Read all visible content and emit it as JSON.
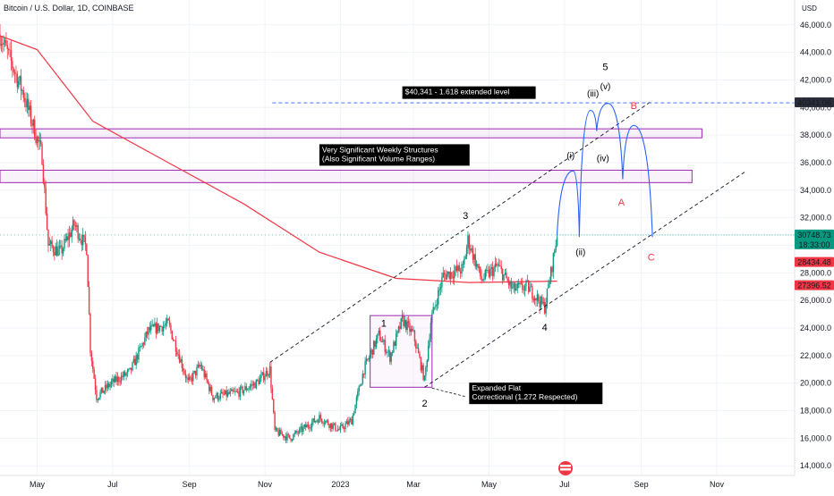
{
  "chart_data": {
    "type": "candlestick",
    "title": "Bitcoin / U.S. Dollar, 1D, COINBASE",
    "currency": "USD",
    "y_ticks": [
      14000,
      16000,
      18000,
      20000,
      22000,
      24000,
      26000,
      28000,
      30000,
      32000,
      34000,
      36000,
      38000,
      40000,
      42000,
      44000,
      46000
    ],
    "ylim": [
      13300,
      47800
    ],
    "x_labels": [
      "May",
      "Jul",
      "Sep",
      "Nov",
      "2023",
      "Mar",
      "May",
      "Jul",
      "Sep",
      "Nov"
    ],
    "grid": true,
    "price_path": [
      {
        "date": "2022-04-01",
        "price": 45300
      },
      {
        "date": "2022-04-20",
        "price": 41000
      },
      {
        "date": "2022-05-05",
        "price": 36500
      },
      {
        "date": "2022-05-10",
        "price": 30000
      },
      {
        "date": "2022-05-20",
        "price": 29500
      },
      {
        "date": "2022-05-31",
        "price": 31500
      },
      {
        "date": "2022-06-10",
        "price": 29800
      },
      {
        "date": "2022-06-13",
        "price": 22500
      },
      {
        "date": "2022-06-18",
        "price": 19000
      },
      {
        "date": "2022-06-30",
        "price": 20000
      },
      {
        "date": "2022-07-15",
        "price": 20800
      },
      {
        "date": "2022-07-30",
        "price": 23800
      },
      {
        "date": "2022-08-15",
        "price": 24300
      },
      {
        "date": "2022-08-31",
        "price": 20000
      },
      {
        "date": "2022-09-10",
        "price": 21300
      },
      {
        "date": "2022-09-20",
        "price": 19000
      },
      {
        "date": "2022-10-10",
        "price": 19300
      },
      {
        "date": "2022-10-25",
        "price": 20000
      },
      {
        "date": "2022-11-05",
        "price": 21000
      },
      {
        "date": "2022-11-09",
        "price": 16500
      },
      {
        "date": "2022-11-21",
        "price": 16000
      },
      {
        "date": "2022-12-15",
        "price": 17500
      },
      {
        "date": "2022-12-31",
        "price": 16600
      },
      {
        "date": "2023-01-10",
        "price": 17300
      },
      {
        "date": "2023-01-20",
        "price": 21000
      },
      {
        "date": "2023-02-01",
        "price": 23500
      },
      {
        "date": "2023-02-10",
        "price": 21900
      },
      {
        "date": "2023-02-20",
        "price": 24600
      },
      {
        "date": "2023-03-01",
        "price": 23500
      },
      {
        "date": "2023-03-10",
        "price": 20200
      },
      {
        "date": "2023-03-15",
        "price": 24500
      },
      {
        "date": "2023-03-25",
        "price": 27800
      },
      {
        "date": "2023-04-10",
        "price": 28300
      },
      {
        "date": "2023-04-14",
        "price": 30400
      },
      {
        "date": "2023-04-25",
        "price": 27500
      },
      {
        "date": "2023-05-08",
        "price": 28500
      },
      {
        "date": "2023-05-20",
        "price": 26800
      },
      {
        "date": "2023-06-01",
        "price": 27000
      },
      {
        "date": "2023-06-15",
        "price": 25500
      },
      {
        "date": "2023-06-20",
        "price": 28000
      },
      {
        "date": "2023-06-25",
        "price": 30748.73
      }
    ],
    "series": [
      {
        "type": "line",
        "color": "#f23645",
        "points": [
          {
            "date": "2022-04-01",
            "price": 45200
          },
          {
            "date": "2022-05-01",
            "price": 44200
          },
          {
            "date": "2022-06-15",
            "price": 39000
          },
          {
            "date": "2022-08-15",
            "price": 36000
          },
          {
            "date": "2022-10-15",
            "price": 33000
          },
          {
            "date": "2022-12-15",
            "price": 29500
          },
          {
            "date": "2023-02-15",
            "price": 27600
          },
          {
            "date": "2023-04-15",
            "price": 27300
          },
          {
            "date": "2023-06-25",
            "price": 27396.52
          }
        ]
      }
    ],
    "price_labels": [
      {
        "value": 40341.06,
        "text": "40341.06",
        "color": "#2a2e39"
      },
      {
        "value": 30748.73,
        "text": "30748.73",
        "sub": "18:33:00",
        "color": "#089981"
      },
      {
        "value": 28434.48,
        "text": "28434.48",
        "color": "#f23645"
      },
      {
        "value": 27396.52,
        "text": "27396.52",
        "color": "#f23645"
      }
    ],
    "zones": [
      {
        "low": 37800,
        "high": 38450
      },
      {
        "low": 34550,
        "high": 35450
      }
    ],
    "correction_box": {
      "x0": "2023-01-25",
      "x1": "2023-03-16",
      "low": 19700,
      "high": 24900
    },
    "channel_lines": [
      {
        "from": {
          "date": "2022-11-05",
          "price": 21500
        },
        "to": {
          "date": "2023-09-10",
          "price": 40500
        }
      },
      {
        "from": {
          "date": "2023-03-10",
          "price": 19700
        },
        "to": {
          "date": "2023-11-25",
          "price": 35400
        }
      }
    ],
    "extension_level": {
      "value": 40341.06
    },
    "wave_path": [
      {
        "date": "2023-06-25",
        "price": 30748.73
      },
      {
        "date": "2023-07-08",
        "price": 35400
      },
      {
        "date": "2023-07-13",
        "price": 30600
      },
      {
        "date": "2023-07-22",
        "price": 39800
      },
      {
        "date": "2023-07-27",
        "price": 38300
      },
      {
        "date": "2023-08-05",
        "price": 40300
      },
      {
        "date": "2023-08-17",
        "price": 34800
      },
      {
        "date": "2023-08-26",
        "price": 38700
      },
      {
        "date": "2023-09-10",
        "price": 30600
      }
    ],
    "annotations": {
      "wave_labels": [
        {
          "text": "1",
          "date": "2023-02-05",
          "price": 24100,
          "color": "#000000"
        },
        {
          "text": "2",
          "date": "2023-03-10",
          "price": 18300,
          "color": "#000000"
        },
        {
          "text": "3",
          "date": "2023-04-12",
          "price": 31900,
          "color": "#000000"
        },
        {
          "text": "4",
          "date": "2023-06-15",
          "price": 23800,
          "color": "#000000"
        },
        {
          "text": "5",
          "date": "2023-08-03",
          "price": 42700,
          "color": "#000000"
        },
        {
          "text": "(i)",
          "date": "2023-07-06",
          "price": 36300,
          "color": "#000000"
        },
        {
          "text": "(ii)",
          "date": "2023-07-14",
          "price": 29300,
          "color": "#000000"
        },
        {
          "text": "(iii)",
          "date": "2023-07-24",
          "price": 40800,
          "color": "#000000"
        },
        {
          "text": "(iv)",
          "date": "2023-08-01",
          "price": 36100,
          "color": "#000000"
        },
        {
          "text": "(v)",
          "date": "2023-08-03",
          "price": 41300,
          "color": "#000000"
        },
        {
          "text": "A",
          "date": "2023-08-16",
          "price": 32900,
          "color": "#f23645"
        },
        {
          "text": "B",
          "date": "2023-08-26",
          "price": 39900,
          "color": "#f23645"
        },
        {
          "text": "C",
          "date": "2023-09-09",
          "price": 28900,
          "color": "#f23645"
        }
      ],
      "text_boxes": [
        {
          "lines": [
            "$40,341 - 1.618 extended level"
          ],
          "date": "2023-02-20",
          "price": 40950
        },
        {
          "lines": [
            "Very Significant Weekly Structures",
            "(Also Significant Volume Ranges)"
          ],
          "date": "2022-12-15",
          "price": 36750
        },
        {
          "lines": [
            "Expanded Flat",
            "Correctional (1.272 Respected)"
          ],
          "date": "2023-04-15",
          "price": 19450
        }
      ]
    }
  }
}
